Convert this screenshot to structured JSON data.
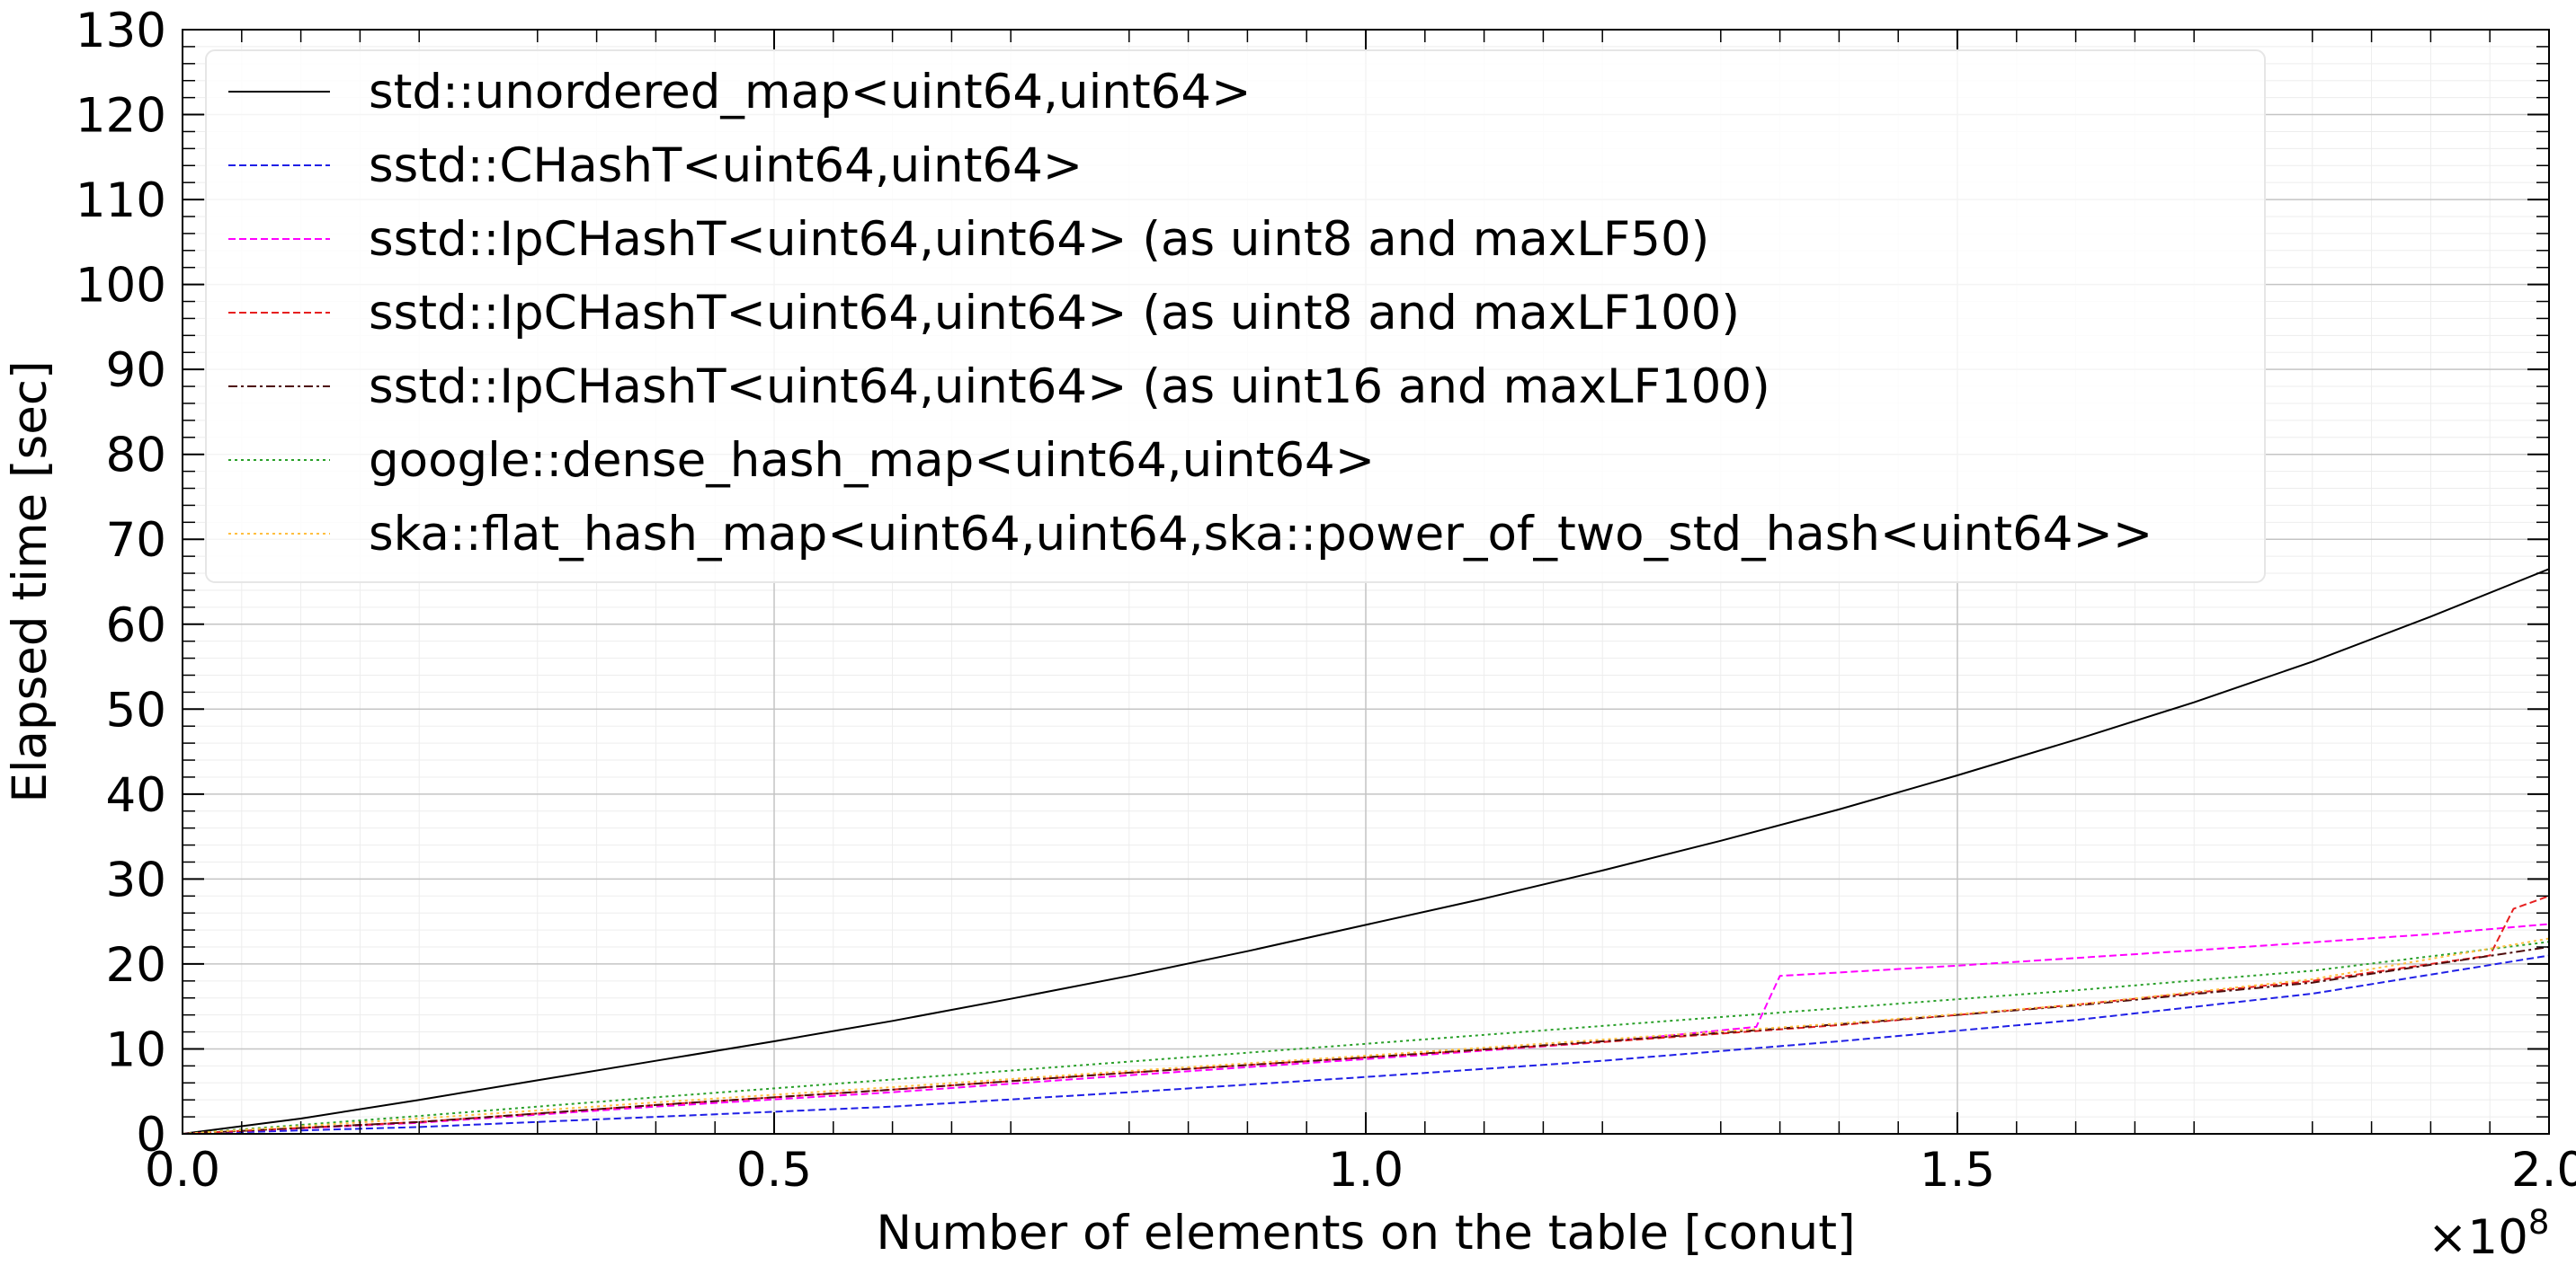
{
  "chart_data": {
    "type": "line",
    "title": "",
    "xlabel": "Number of elements on the table [conut]",
    "ylabel": "Elapsed time [sec]",
    "x_multiplier_label": "×10",
    "x_multiplier_exponent": "8",
    "xlim": [
      0.0,
      2.0
    ],
    "ylim": [
      0,
      130
    ],
    "x_ticks": [
      0.0,
      0.5,
      1.0,
      1.5,
      2.0
    ],
    "x_tick_labels": [
      "0.0",
      "0.5",
      "1.0",
      "1.5",
      "2.0"
    ],
    "y_ticks": [
      0,
      10,
      20,
      30,
      40,
      50,
      60,
      70,
      80,
      90,
      100,
      110,
      120,
      130
    ],
    "y_tick_labels": [
      "0",
      "10",
      "20",
      "30",
      "40",
      "50",
      "60",
      "70",
      "80",
      "90",
      "100",
      "110",
      "120",
      "130"
    ],
    "grid": true,
    "minor_grid": true,
    "legend_position": "top-left",
    "series": [
      {
        "name": "std::unordered_map<uint64,uint64>",
        "color": "#000000",
        "dash": "solid",
        "x": [
          0.0,
          0.1,
          0.2,
          0.3,
          0.4,
          0.5,
          0.6,
          0.7,
          0.8,
          0.9,
          1.0,
          1.1,
          1.2,
          1.3,
          1.4,
          1.5,
          1.6,
          1.7,
          1.8,
          1.9,
          2.0
        ],
        "y": [
          0.0,
          1.8,
          4.0,
          6.3,
          8.6,
          10.9,
          13.3,
          15.9,
          18.6,
          21.5,
          24.6,
          27.7,
          31.0,
          34.5,
          38.2,
          42.2,
          46.4,
          50.8,
          55.6,
          60.9,
          66.5
        ]
      },
      {
        "name": "sstd::CHashT<uint64,uint64>",
        "color": "#1f1fe6",
        "dash": "dashed",
        "x": [
          0.0,
          0.2,
          0.4,
          0.6,
          0.8,
          1.0,
          1.2,
          1.4,
          1.6,
          1.8,
          2.0
        ],
        "y": [
          0.0,
          0.8,
          2.0,
          3.2,
          4.9,
          6.7,
          8.6,
          10.9,
          13.4,
          16.5,
          21.0
        ]
      },
      {
        "name": "sstd::IpCHashT<uint64,uint64> (as uint8 and maxLF50)",
        "color": "#ff00ff",
        "dash": "dashed",
        "x": [
          0.0,
          0.2,
          0.4,
          0.6,
          0.8,
          1.0,
          1.2,
          1.33,
          1.35,
          1.5,
          1.7,
          1.9,
          2.0
        ],
        "y": [
          0.0,
          1.3,
          3.2,
          4.9,
          6.9,
          8.8,
          10.8,
          12.6,
          18.6,
          19.8,
          21.6,
          23.5,
          24.7
        ]
      },
      {
        "name": "sstd::IpCHashT<uint64,uint64> (as uint8 and maxLF100)",
        "color": "#e61f1f",
        "dash": "dashed",
        "x": [
          0.0,
          0.2,
          0.4,
          0.6,
          0.8,
          1.0,
          1.2,
          1.4,
          1.6,
          1.8,
          1.95,
          1.97,
          2.0
        ],
        "y": [
          0.0,
          1.4,
          3.4,
          5.2,
          7.2,
          9.0,
          10.8,
          12.8,
          15.2,
          18.0,
          21.0,
          26.5,
          28.0
        ]
      },
      {
        "name": "sstd::IpCHashT<uint64,uint64> (as uint16 and maxLF100)",
        "color": "#4d0d0d",
        "dash": "dashdot",
        "x": [
          0.0,
          0.2,
          0.4,
          0.6,
          0.8,
          1.0,
          1.2,
          1.4,
          1.6,
          1.8,
          2.0
        ],
        "y": [
          0.0,
          1.4,
          3.4,
          5.2,
          7.2,
          9.0,
          10.9,
          12.9,
          15.1,
          17.8,
          22.0
        ]
      },
      {
        "name": "google::dense_hash_map<uint64,uint64>",
        "color": "#2aa02a",
        "dash": "dotted",
        "x": [
          0.0,
          0.2,
          0.4,
          0.6,
          0.8,
          1.0,
          1.2,
          1.4,
          1.6,
          1.8,
          2.0
        ],
        "y": [
          0.0,
          2.1,
          4.3,
          6.4,
          8.5,
          10.6,
          12.7,
          14.8,
          16.9,
          19.2,
          22.6
        ]
      },
      {
        "name": "ska::flat_hash_map<uint64,uint64,ska::power_of_two_std_hash<uint64>>",
        "color": "#ffbf40",
        "dash": "dotted",
        "x": [
          0.0,
          0.2,
          0.4,
          0.6,
          0.8,
          1.0,
          1.2,
          1.4,
          1.6,
          1.8,
          2.0
        ],
        "y": [
          0.0,
          1.8,
          3.7,
          5.5,
          7.4,
          9.2,
          11.1,
          13.0,
          15.2,
          18.2,
          23.0
        ]
      }
    ]
  }
}
